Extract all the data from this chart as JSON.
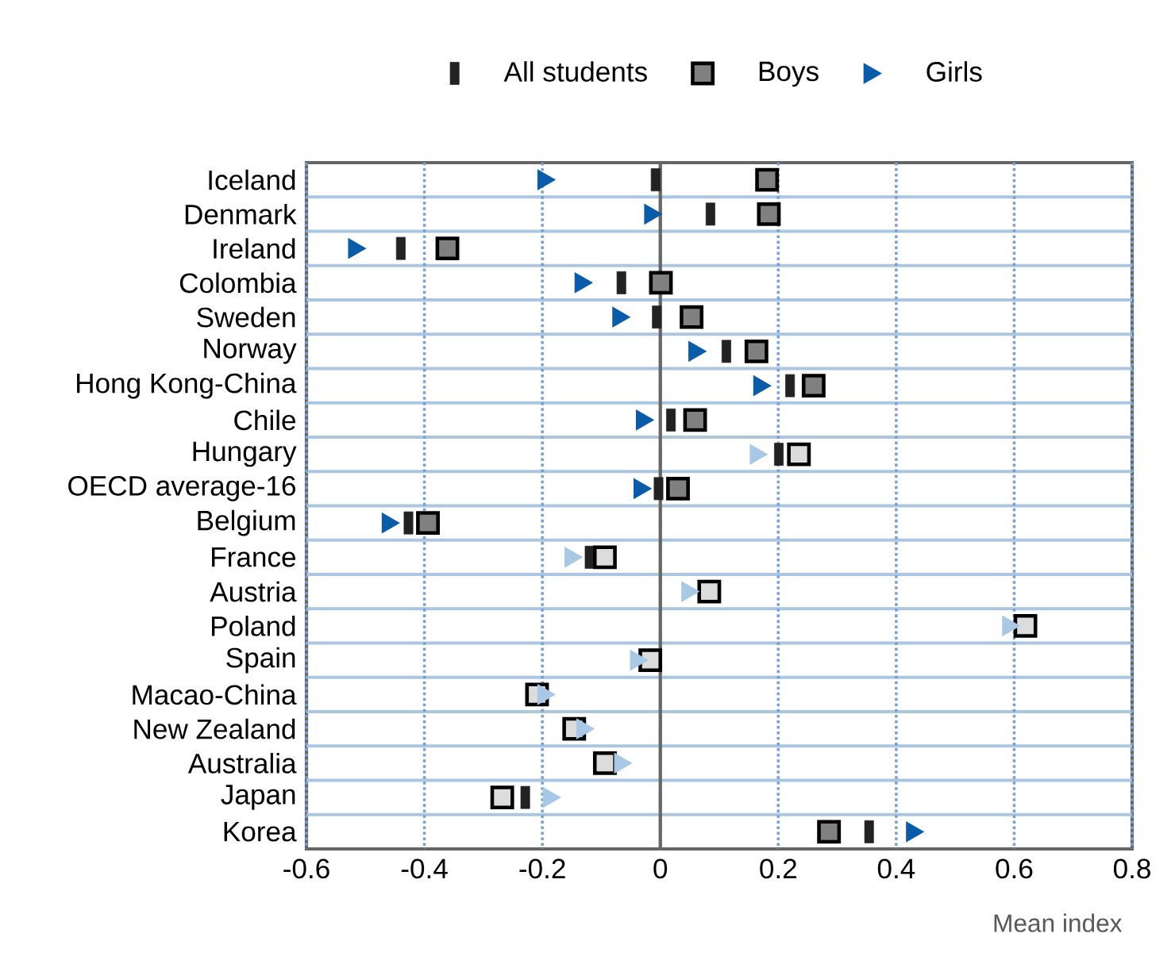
{
  "chart_data": {
    "type": "scatter",
    "orientation": "horizontal",
    "xlabel": "Mean index",
    "legend": "top",
    "grid": "x",
    "categories": [
      "Iceland",
      "Denmark",
      "Ireland",
      "Colombia",
      "Sweden",
      "Norway",
      "Hong Kong-China",
      "Chile",
      "Hungary",
      "OECD average-16",
      "Belgium",
      "France",
      "Austria",
      "Poland",
      "Spain",
      "Macao-China",
      "New Zealand",
      "Australia",
      "Japan",
      "Korea"
    ],
    "xlim": [
      -0.6,
      0.8
    ],
    "xticks": [
      -0.6,
      -0.4,
      -0.2,
      0,
      0.2,
      0.4,
      0.6,
      0.8
    ],
    "series": [
      {
        "name": "All students",
        "color": "#222222",
        "values": [
          -0.008,
          0.085,
          -0.44,
          -0.066,
          -0.006,
          0.112,
          0.22,
          0.018,
          0.201,
          -0.003,
          -0.427,
          -0.12,
          null,
          null,
          null,
          null,
          null,
          null,
          -0.229,
          0.354
        ]
      },
      {
        "name": "Boys",
        "color": "#808080",
        "marker": "square",
        "values": [
          0.181,
          0.184,
          -0.361,
          0.001,
          0.053,
          0.163,
          0.26,
          0.059,
          0.235,
          0.03,
          -0.394,
          -0.094,
          0.083,
          0.619,
          -0.017,
          -0.209,
          -0.146,
          -0.094,
          -0.268,
          0.286
        ],
        "colors": [
          "#808080",
          "#808080",
          "#808080",
          "#808080",
          "#808080",
          "#808080",
          "#808080",
          "#808080",
          "#dcdcdc",
          "#808080",
          "#808080",
          "#dcdcdc",
          "#dcdcdc",
          "#dcdcdc",
          "#dcdcdc",
          "#dcdcdc",
          "#dcdcdc",
          "#dcdcdc",
          "#dcdcdc",
          "#808080"
        ]
      },
      {
        "name": "Girls",
        "color": "#0a5ca8",
        "marker": "triangle",
        "values": [
          -0.198,
          -0.017,
          -0.519,
          -0.135,
          -0.071,
          0.058,
          0.168,
          -0.031,
          0.162,
          -0.035,
          -0.462,
          -0.152,
          0.046,
          0.59,
          -0.041,
          -0.198,
          -0.132,
          -0.068,
          -0.189,
          0.427
        ],
        "colors": [
          "#0a5ca8",
          "#0a5ca8",
          "#0a5ca8",
          "#0a5ca8",
          "#0a5ca8",
          "#0a5ca8",
          "#0a5ca8",
          "#0a5ca8",
          "#a9c8e6",
          "#0a5ca8",
          "#0a5ca8",
          "#a9c8e6",
          "#a9c8e6",
          "#a9c8e6",
          "#a9c8e6",
          "#a9c8e6",
          "#a9c8e6",
          "#a9c8e6",
          "#a9c8e6",
          "#0a5ca8"
        ]
      }
    ]
  }
}
